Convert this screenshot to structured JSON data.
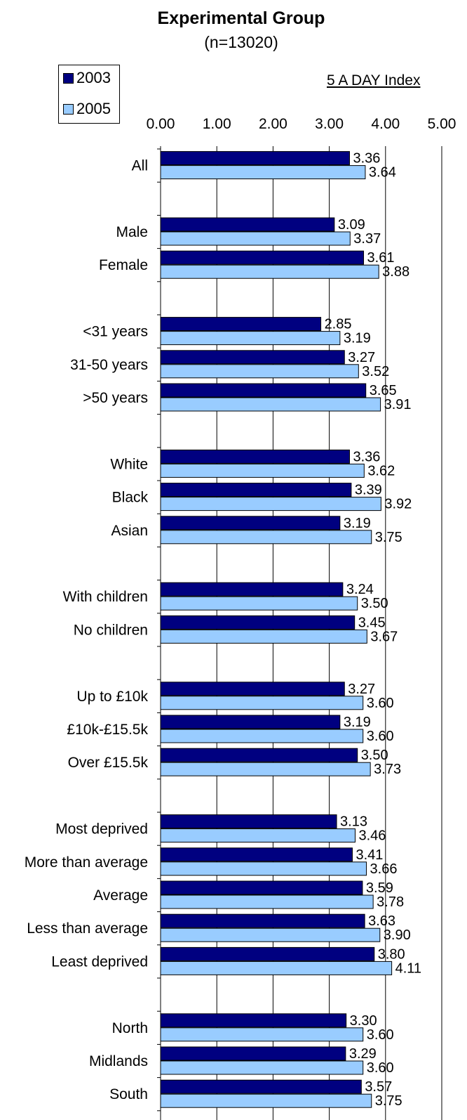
{
  "chart_data": {
    "type": "bar",
    "orientation": "horizontal",
    "title": "Experimental Group",
    "subtitle": "(n=13020)",
    "index_label": "5 A DAY Index",
    "xlim": [
      0,
      5
    ],
    "xticks": [
      "0.00",
      "1.00",
      "2.00",
      "3.00",
      "4.00",
      "5.00"
    ],
    "grid": true,
    "legend_position": "top-left",
    "series": [
      {
        "name": "2003",
        "color": "#000080"
      },
      {
        "name": "2005",
        "color": "#99ccff"
      }
    ],
    "categories": [
      {
        "label": "All",
        "v2003": 3.36,
        "l2003": "3.36",
        "v2005": 3.64,
        "l2005": "3.64"
      },
      {
        "label": "",
        "gap": true
      },
      {
        "label": "Male",
        "v2003": 3.09,
        "l2003": "3.09",
        "v2005": 3.37,
        "l2005": "3.37"
      },
      {
        "label": "Female",
        "v2003": 3.61,
        "l2003": "3.61",
        "v2005": 3.88,
        "l2005": "3.88"
      },
      {
        "label": "",
        "gap": true
      },
      {
        "label": "<31 years",
        "v2003": 2.85,
        "l2003": "2.85",
        "v2005": 3.19,
        "l2005": "3.19"
      },
      {
        "label": "31-50 years",
        "v2003": 3.27,
        "l2003": "3.27",
        "v2005": 3.52,
        "l2005": "3.52"
      },
      {
        "label": ">50 years",
        "v2003": 3.65,
        "l2003": "3.65",
        "v2005": 3.91,
        "l2005": "3.91"
      },
      {
        "label": "",
        "gap": true
      },
      {
        "label": "White",
        "v2003": 3.36,
        "l2003": "3.36",
        "v2005": 3.62,
        "l2005": "3.62"
      },
      {
        "label": "Black",
        "v2003": 3.39,
        "l2003": "3.39",
        "v2005": 3.92,
        "l2005": "3.92"
      },
      {
        "label": "Asian",
        "v2003": 3.19,
        "l2003": "3.19",
        "v2005": 3.75,
        "l2005": "3.75"
      },
      {
        "label": "",
        "gap": true
      },
      {
        "label": "With children",
        "v2003": 3.24,
        "l2003": "3.24",
        "v2005": 3.5,
        "l2005": "3.50"
      },
      {
        "label": "No children",
        "v2003": 3.45,
        "l2003": "3.45",
        "v2005": 3.67,
        "l2005": "3.67"
      },
      {
        "label": "",
        "gap": true
      },
      {
        "label": "Up to £10k",
        "v2003": 3.27,
        "l2003": "3.27",
        "v2005": 3.6,
        "l2005": "3.60"
      },
      {
        "label": "£10k-£15.5k",
        "v2003": 3.19,
        "l2003": "3.19",
        "v2005": 3.6,
        "l2005": "3.60"
      },
      {
        "label": "Over £15.5k",
        "v2003": 3.5,
        "l2003": "3.50",
        "v2005": 3.73,
        "l2005": "3.73"
      },
      {
        "label": "",
        "gap": true
      },
      {
        "label": "Most deprived",
        "v2003": 3.13,
        "l2003": "3.13",
        "v2005": 3.46,
        "l2005": "3.46"
      },
      {
        "label": "More than average",
        "v2003": 3.41,
        "l2003": "3.41",
        "v2005": 3.66,
        "l2005": "3.66"
      },
      {
        "label": "Average",
        "v2003": 3.59,
        "l2003": "3.59",
        "v2005": 3.78,
        "l2005": "3.78"
      },
      {
        "label": "Less than average",
        "v2003": 3.63,
        "l2003": "3.63",
        "v2005": 3.9,
        "l2005": "3.90"
      },
      {
        "label": "Least deprived",
        "v2003": 3.8,
        "l2003": "3.80",
        "v2005": 4.11,
        "l2005": "4.11"
      },
      {
        "label": "",
        "gap": true
      },
      {
        "label": "North",
        "v2003": 3.3,
        "l2003": "3.30",
        "v2005": 3.6,
        "l2005": "3.60"
      },
      {
        "label": "Midlands",
        "v2003": 3.29,
        "l2003": "3.29",
        "v2005": 3.6,
        "l2005": "3.60"
      },
      {
        "label": "South",
        "v2003": 3.57,
        "l2003": "3.57",
        "v2005": 3.75,
        "l2005": "3.75"
      }
    ]
  }
}
